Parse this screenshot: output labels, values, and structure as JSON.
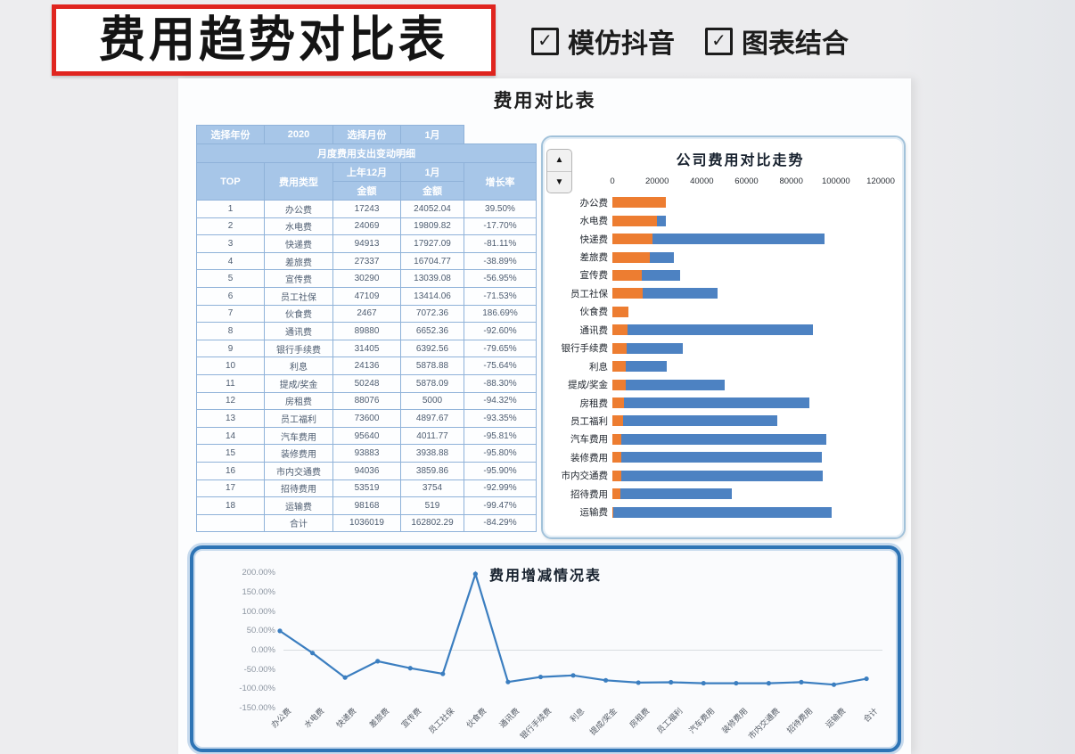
{
  "header": {
    "banner_title": "费用趋势对比表",
    "check1": "模仿抖音",
    "check2": "图表结合",
    "check_icon": "✓"
  },
  "sheet": {
    "title": "费用对比表"
  },
  "table": {
    "year_label": "选择年份",
    "year_value": "2020",
    "month_label": "选择月份",
    "month_value": "1月",
    "subtitle": "月度费用支出变动明细",
    "col_top": "TOP",
    "col_category": "费用类型",
    "col_prev": "上年12月",
    "col_curr": "1月",
    "col_amount": "金额",
    "col_rate": "增长率",
    "rows": [
      {
        "top": "1",
        "category": "办公费",
        "prev": "17243",
        "curr": "24052.04",
        "rate": "39.50%"
      },
      {
        "top": "2",
        "category": "水电费",
        "prev": "24069",
        "curr": "19809.82",
        "rate": "-17.70%"
      },
      {
        "top": "3",
        "category": "快递费",
        "prev": "94913",
        "curr": "17927.09",
        "rate": "-81.11%"
      },
      {
        "top": "4",
        "category": "差旅费",
        "prev": "27337",
        "curr": "16704.77",
        "rate": "-38.89%"
      },
      {
        "top": "5",
        "category": "宣传费",
        "prev": "30290",
        "curr": "13039.08",
        "rate": "-56.95%"
      },
      {
        "top": "6",
        "category": "员工社保",
        "prev": "47109",
        "curr": "13414.06",
        "rate": "-71.53%"
      },
      {
        "top": "7",
        "category": "伙食费",
        "prev": "2467",
        "curr": "7072.36",
        "rate": "186.69%"
      },
      {
        "top": "8",
        "category": "通讯费",
        "prev": "89880",
        "curr": "6652.36",
        "rate": "-92.60%"
      },
      {
        "top": "9",
        "category": "银行手续费",
        "prev": "31405",
        "curr": "6392.56",
        "rate": "-79.65%"
      },
      {
        "top": "10",
        "category": "利息",
        "prev": "24136",
        "curr": "5878.88",
        "rate": "-75.64%"
      },
      {
        "top": "11",
        "category": "提成/奖金",
        "prev": "50248",
        "curr": "5878.09",
        "rate": "-88.30%"
      },
      {
        "top": "12",
        "category": "房租费",
        "prev": "88076",
        "curr": "5000",
        "rate": "-94.32%"
      },
      {
        "top": "13",
        "category": "员工福利",
        "prev": "73600",
        "curr": "4897.67",
        "rate": "-93.35%"
      },
      {
        "top": "14",
        "category": "汽车费用",
        "prev": "95640",
        "curr": "4011.77",
        "rate": "-95.81%"
      },
      {
        "top": "15",
        "category": "装修费用",
        "prev": "93883",
        "curr": "3938.88",
        "rate": "-95.80%"
      },
      {
        "top": "16",
        "category": "市内交通费",
        "prev": "94036",
        "curr": "3859.86",
        "rate": "-95.90%"
      },
      {
        "top": "17",
        "category": "招待费用",
        "prev": "53519",
        "curr": "3754",
        "rate": "-92.99%"
      },
      {
        "top": "18",
        "category": "运输费",
        "prev": "98168",
        "curr": "519",
        "rate": "-99.47%"
      }
    ],
    "total": {
      "top": "",
      "category": "合计",
      "prev": "1036019",
      "curr": "162802.29",
      "rate": "-84.29%"
    }
  },
  "chart_data": [
    {
      "type": "bar",
      "orientation": "horizontal",
      "title": "公司费用对比走势",
      "categories": [
        "办公费",
        "水电费",
        "快递费",
        "差旅费",
        "宣传费",
        "员工社保",
        "伙食费",
        "通讯费",
        "银行手续费",
        "利息",
        "提成/奖金",
        "房租费",
        "员工福利",
        "汽车费用",
        "装修费用",
        "市内交通费",
        "招待费用",
        "运输费"
      ],
      "series": [
        {
          "name": "上年12月",
          "color": "#4d82c2",
          "values": [
            17243,
            24069,
            94913,
            27337,
            30290,
            47109,
            2467,
            89880,
            31405,
            24136,
            50248,
            88076,
            73600,
            95640,
            93883,
            94036,
            53519,
            98168
          ]
        },
        {
          "name": "1月",
          "color": "#ed7d31",
          "values": [
            24052.04,
            19809.82,
            17927.09,
            16704.77,
            13039.08,
            13414.06,
            7072.36,
            6652.36,
            6392.56,
            5878.88,
            5878.09,
            5000,
            4897.67,
            4011.77,
            3938.88,
            3859.86,
            3754,
            519
          ]
        }
      ],
      "bar_style": "overlapped",
      "xlim": [
        0,
        120000
      ],
      "xticks": [
        0,
        20000,
        40000,
        60000,
        80000,
        100000,
        120000
      ],
      "legend": "none"
    },
    {
      "type": "line",
      "title": "费用增减情况表",
      "categories": [
        "办公费",
        "水电费",
        "快递费",
        "差旅费",
        "宣传费",
        "员工社保",
        "伙食费",
        "通讯费",
        "银行手续费",
        "利息",
        "提成/奖金",
        "房租费",
        "员工福利",
        "汽车费用",
        "装修费用",
        "市内交通费",
        "招待费用",
        "运输费",
        "合计"
      ],
      "values": [
        39.5,
        -17.7,
        -81.11,
        -38.89,
        -56.95,
        -71.53,
        186.69,
        -92.6,
        -79.65,
        -75.64,
        -88.3,
        -94.32,
        -93.35,
        -95.81,
        -95.8,
        -95.9,
        -92.99,
        -99.47,
        -84.29
      ],
      "unit": "%",
      "ylim": [
        -150,
        200
      ],
      "ytick_step": 50,
      "ytick_labels": [
        "200.00%",
        "150.00%",
        "100.00%",
        "50.00%",
        "0.00%",
        "-50.00%",
        "-100.00%",
        "-150.00%"
      ],
      "color": "#3b7ec0",
      "grid": "zero-line-only",
      "legend": "none"
    }
  ]
}
